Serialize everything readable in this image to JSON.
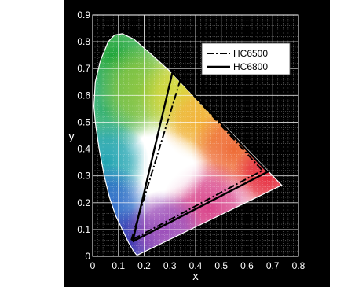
{
  "chart_data": {
    "type": "line",
    "title": "",
    "xlabel": "x",
    "ylabel": "y",
    "xlim": [
      0,
      0.8
    ],
    "ylim": [
      0,
      0.9
    ],
    "x_ticks": [
      "0",
      "0.1",
      "0.2",
      "0.3",
      "0.4",
      "0.5",
      "0.6",
      "0.7",
      "0.8"
    ],
    "y_ticks": [
      "0",
      "0.1",
      "0.2",
      "0.3",
      "0.4",
      "0.5",
      "0.6",
      "0.7",
      "0.8",
      "0.9"
    ],
    "grid": true,
    "background": "#000000",
    "legend_position": "top-right",
    "spectral_locus": [
      {
        "x": 0.175,
        "y": 0.005
      },
      {
        "x": 0.17,
        "y": 0.006
      },
      {
        "x": 0.16,
        "y": 0.018
      },
      {
        "x": 0.14,
        "y": 0.05
      },
      {
        "x": 0.12,
        "y": 0.09
      },
      {
        "x": 0.09,
        "y": 0.15
      },
      {
        "x": 0.065,
        "y": 0.22
      },
      {
        "x": 0.045,
        "y": 0.3
      },
      {
        "x": 0.025,
        "y": 0.4
      },
      {
        "x": 0.01,
        "y": 0.5
      },
      {
        "x": 0.005,
        "y": 0.56
      },
      {
        "x": 0.01,
        "y": 0.65
      },
      {
        "x": 0.03,
        "y": 0.73
      },
      {
        "x": 0.06,
        "y": 0.8
      },
      {
        "x": 0.085,
        "y": 0.825
      },
      {
        "x": 0.115,
        "y": 0.83
      },
      {
        "x": 0.16,
        "y": 0.81
      },
      {
        "x": 0.22,
        "y": 0.76
      },
      {
        "x": 0.3,
        "y": 0.69
      },
      {
        "x": 0.36,
        "y": 0.63
      },
      {
        "x": 0.44,
        "y": 0.55
      },
      {
        "x": 0.52,
        "y": 0.48
      },
      {
        "x": 0.6,
        "y": 0.4
      },
      {
        "x": 0.66,
        "y": 0.34
      },
      {
        "x": 0.7,
        "y": 0.3
      },
      {
        "x": 0.735,
        "y": 0.265
      }
    ],
    "series": [
      {
        "name": "HC6500",
        "style": "dash-dot",
        "color": "#000000",
        "points": [
          [
            0.15,
            0.06
          ],
          [
            0.34,
            0.655
          ],
          [
            0.66,
            0.32
          ],
          [
            0.15,
            0.06
          ]
        ]
      },
      {
        "name": "HC6800",
        "style": "solid",
        "color": "#000000",
        "points": [
          [
            0.155,
            0.055
          ],
          [
            0.31,
            0.685
          ],
          [
            0.68,
            0.315
          ],
          [
            0.155,
            0.055
          ]
        ]
      }
    ]
  }
}
